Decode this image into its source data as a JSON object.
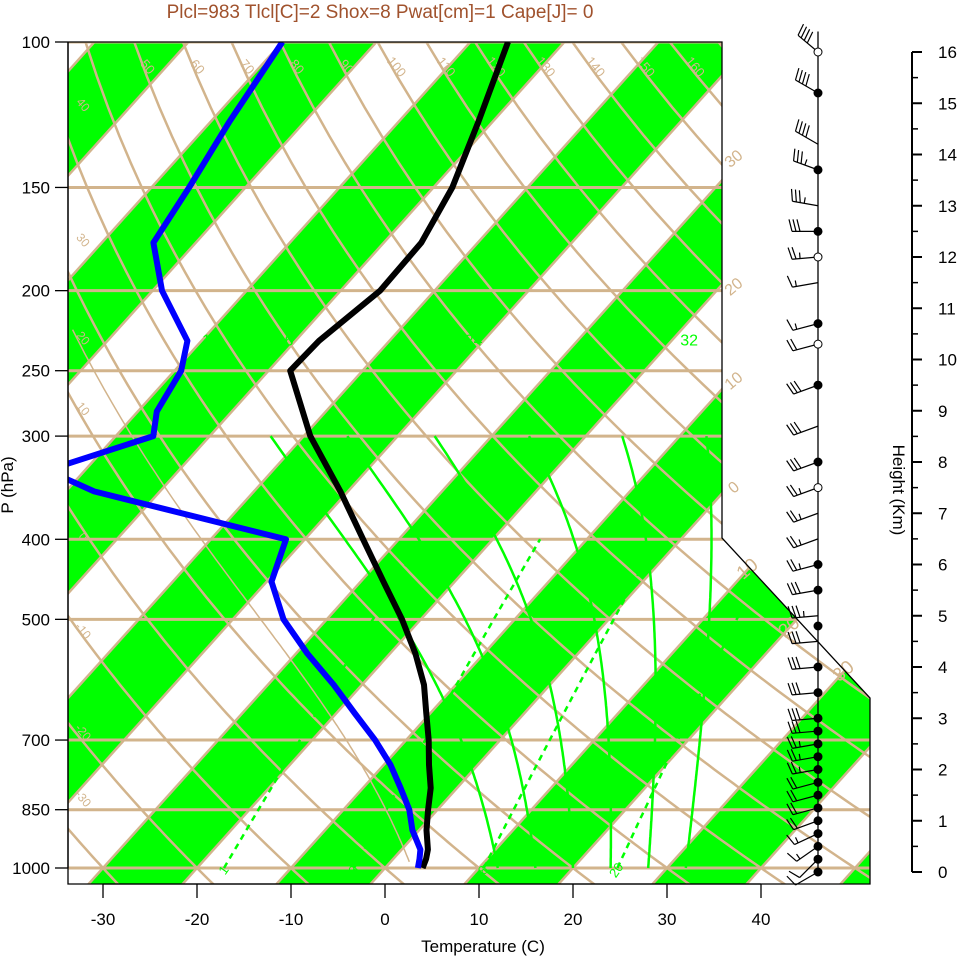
{
  "title": "Plcl=983 Tlcl[C]=2 Shox=8 Pwat[cm]=1 Cape[J]= 0",
  "colors": {
    "band": "#00ff00",
    "isotherm": "#d2b48c",
    "adiabat": "#d2b48c",
    "moist_adiabat": "#00ff00",
    "mixing_ratio": "#00ff00",
    "temperature": "#000000",
    "dewpoint": "#0000ff",
    "title": "#a0522d",
    "wind": "#000000"
  },
  "chart_data": {
    "type": "line",
    "chart_kind": "skew-T log-P diagram",
    "xlabel": "Temperature (C)",
    "ylabel": "P (hPa)",
    "right_label": "Height (Km)",
    "x_ticks": [
      "-30",
      "-20",
      "-10",
      "0",
      "10",
      "20",
      "30",
      "40"
    ],
    "x_tick_values": [
      -30,
      -20,
      -10,
      0,
      10,
      20,
      30,
      40
    ],
    "xlim": [
      -33.5,
      45
    ],
    "y_ticks": [
      "100",
      "150",
      "200",
      "250",
      "300",
      "400",
      "500",
      "700",
      "850",
      "1000"
    ],
    "y_tick_values": [
      100,
      150,
      200,
      250,
      300,
      400,
      500,
      700,
      850,
      1000
    ],
    "ylim": [
      1050,
      100
    ],
    "y_scale": "log",
    "height_ticks": [
      "0",
      "1",
      "2",
      "3",
      "4",
      "5",
      "6",
      "7",
      "8",
      "9",
      "10",
      "11",
      "12",
      "13",
      "14",
      "15",
      "16"
    ],
    "height_tick_values": [
      0,
      1,
      2,
      3,
      4,
      5,
      6,
      7,
      8,
      9,
      10,
      11,
      12,
      13,
      14,
      15,
      16
    ],
    "grid": true,
    "temperature_profile": {
      "p": [
        1000,
        975,
        950,
        900,
        850,
        800,
        750,
        700,
        650,
        600,
        550,
        500,
        450,
        400,
        350,
        300,
        250,
        230,
        200,
        175,
        150,
        125,
        100
      ],
      "t": [
        4.0,
        3.5,
        2.8,
        0.8,
        -1.0,
        -2.8,
        -5.2,
        -7.6,
        -10.4,
        -13.4,
        -17.3,
        -22.0,
        -27.6,
        -33.8,
        -40.8,
        -49.3,
        -57.7,
        -57.5,
        -55.8,
        -56.0,
        -58.0,
        -61.5,
        -66.0
      ]
    },
    "dewpoint_profile": {
      "p": [
        1000,
        975,
        950,
        900,
        850,
        800,
        750,
        700,
        650,
        600,
        550,
        500,
        450,
        400,
        350,
        330,
        300,
        280,
        250,
        230,
        200,
        175,
        150,
        125,
        100
      ],
      "td": [
        3.5,
        2.8,
        2.0,
        -0.7,
        -3.0,
        -6.0,
        -9.3,
        -13.3,
        -18.0,
        -23.0,
        -28.8,
        -34.6,
        -39.5,
        -42.0,
        -67.0,
        -74.0,
        -66.0,
        -68.0,
        -69.3,
        -71.5,
        -79.0,
        -84.5,
        -86.0,
        -88.0,
        -90.0
      ]
    },
    "isotherm_label_values": [
      -40,
      -30,
      -20,
      -10,
      0,
      10,
      20,
      30
    ],
    "isotherm_labels": [
      "-40",
      "-30",
      "-20",
      "-10",
      "0",
      "10",
      "20",
      "30"
    ],
    "dry_adiabat_label_values": [
      40,
      30,
      20,
      10,
      0,
      -10,
      -20,
      -30
    ],
    "dry_adiabat_labels_left": [
      "40",
      "30",
      "20",
      "10",
      "0",
      "-10",
      "-20",
      "-30"
    ],
    "theta_top_values": [
      50,
      60,
      70,
      80,
      90,
      100,
      110,
      120,
      130,
      140,
      150,
      160
    ],
    "theta_top_labels": [
      "50",
      "60",
      "70",
      "80",
      "90",
      "100",
      "110",
      "120",
      "130",
      "140",
      "150",
      "160"
    ],
    "moist_adiabat_values": [
      12,
      16,
      20,
      24,
      28,
      32
    ],
    "moist_adiabat_labels": [
      "12",
      "16",
      "24",
      "32"
    ],
    "moist_adiabat_label_values": [
      12,
      16,
      24,
      32
    ],
    "mixing_ratio_values": [
      1,
      3,
      8,
      20
    ],
    "mixing_ratio_labels": [
      "1",
      "3",
      "8",
      "20"
    ],
    "winds": {
      "heights_km": [
        0,
        0.25,
        0.5,
        0.75,
        1.0,
        1.25,
        1.5,
        1.75,
        2.0,
        2.25,
        2.5,
        2.75,
        3.0,
        3.5,
        4.0,
        4.5,
        5.0,
        5.5,
        6.0,
        6.5,
        7.0,
        7.5,
        8.0,
        8.7,
        9.5,
        10.3,
        10.7,
        11.5,
        12.0,
        12.5,
        13.0,
        13.7,
        14.2,
        15.2,
        16.0
      ],
      "speeds_kt": [
        10,
        10,
        15,
        15,
        20,
        20,
        20,
        20,
        25,
        25,
        25,
        30,
        30,
        30,
        30,
        30,
        35,
        30,
        25,
        25,
        25,
        25,
        30,
        30,
        30,
        20,
        15,
        15,
        25,
        30,
        35,
        35,
        40,
        40,
        40
      ],
      "directions_deg": [
        240,
        225,
        235,
        245,
        250,
        255,
        255,
        255,
        260,
        260,
        260,
        265,
        265,
        265,
        265,
        265,
        265,
        260,
        255,
        250,
        250,
        250,
        250,
        250,
        250,
        255,
        255,
        260,
        265,
        270,
        280,
        290,
        300,
        300,
        310
      ],
      "marker_heights_km": [
        0,
        0.25,
        0.5,
        0.75,
        1.0,
        1.25,
        1.5,
        1.75,
        2.0,
        2.25,
        2.5,
        2.75,
        3.0,
        3.5,
        4.0,
        4.8,
        5.5,
        6.0,
        7.5,
        8.0,
        9.5,
        10.3,
        10.7,
        12.0,
        12.5,
        13.7,
        15.2,
        16.0
      ],
      "marker_filled": [
        true,
        true,
        true,
        true,
        true,
        true,
        true,
        true,
        true,
        true,
        true,
        true,
        true,
        true,
        true,
        true,
        true,
        true,
        false,
        true,
        true,
        false,
        true,
        false,
        true,
        true,
        true,
        false
      ]
    }
  }
}
